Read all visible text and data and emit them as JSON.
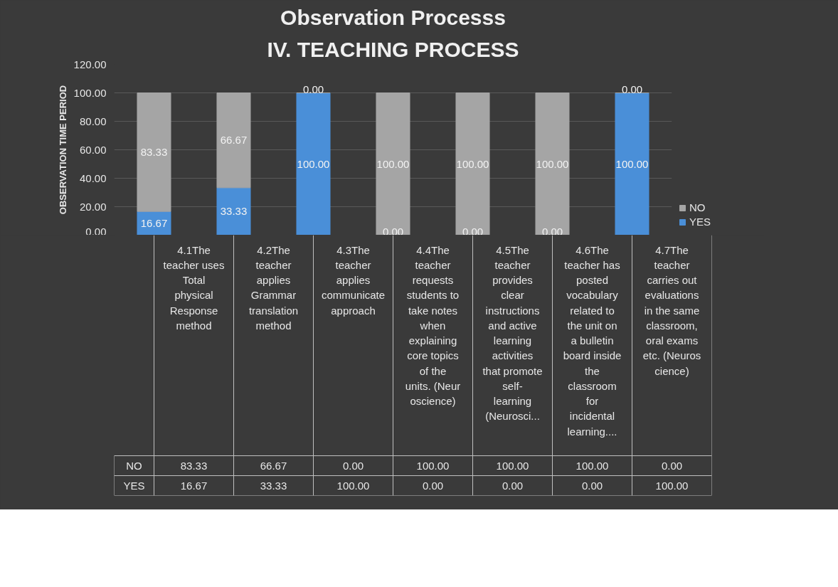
{
  "chart_data": {
    "type": "bar",
    "title": "Observation Processs",
    "subtitle": "IV. TEACHING PROCESS",
    "ylabel": "OBSERVATION TIME PERIOD",
    "categories": [
      "4.1The teacher uses Total physical Response method",
      "4.2The teacher applies Grammar translation method",
      "4.3The teacher applies communicate approach",
      "4.4The teacher requests students to take notes when explaining core topics of the units. (Neuroscience)",
      "4.5The teacher provides clear instructions and active learning activities that promote self-learning (Neurosci...",
      "4.6The teacher has posted vocabulary related to the unit on a bulletin board inside the classroom for incidental learning....",
      "4.7The teacher carries out evaluations in the same classroom, oral exams etc. (Neuroscience)"
    ],
    "stacked": true,
    "series": [
      {
        "name": "YES",
        "color": "#4a8fd8",
        "values": [
          16.67,
          33.33,
          100,
          0,
          0,
          0,
          100
        ],
        "value_labels": [
          "16.67",
          "33.33",
          "100.00",
          "0.00",
          "0.00",
          "0.00",
          "100.00"
        ]
      },
      {
        "name": "NO",
        "color": "#a5a5a5",
        "values": [
          83.33,
          66.67,
          0,
          100,
          100,
          100,
          0
        ],
        "value_labels": [
          "83.33",
          "66.67",
          "0.00",
          "100.00",
          "100.00",
          "100.00",
          "0.00"
        ]
      }
    ],
    "ylim": [
      0,
      120
    ],
    "yticks": [
      {
        "value": 0,
        "label": "0.00"
      },
      {
        "value": 20,
        "label": "20.00"
      },
      {
        "value": 40,
        "label": "40.00"
      },
      {
        "value": 60,
        "label": "60.00"
      },
      {
        "value": 80,
        "label": "80.00"
      },
      {
        "value": 100,
        "label": "100.00"
      },
      {
        "value": 120,
        "label": "120.00"
      }
    ],
    "grid": "y",
    "legend": "right"
  }
}
